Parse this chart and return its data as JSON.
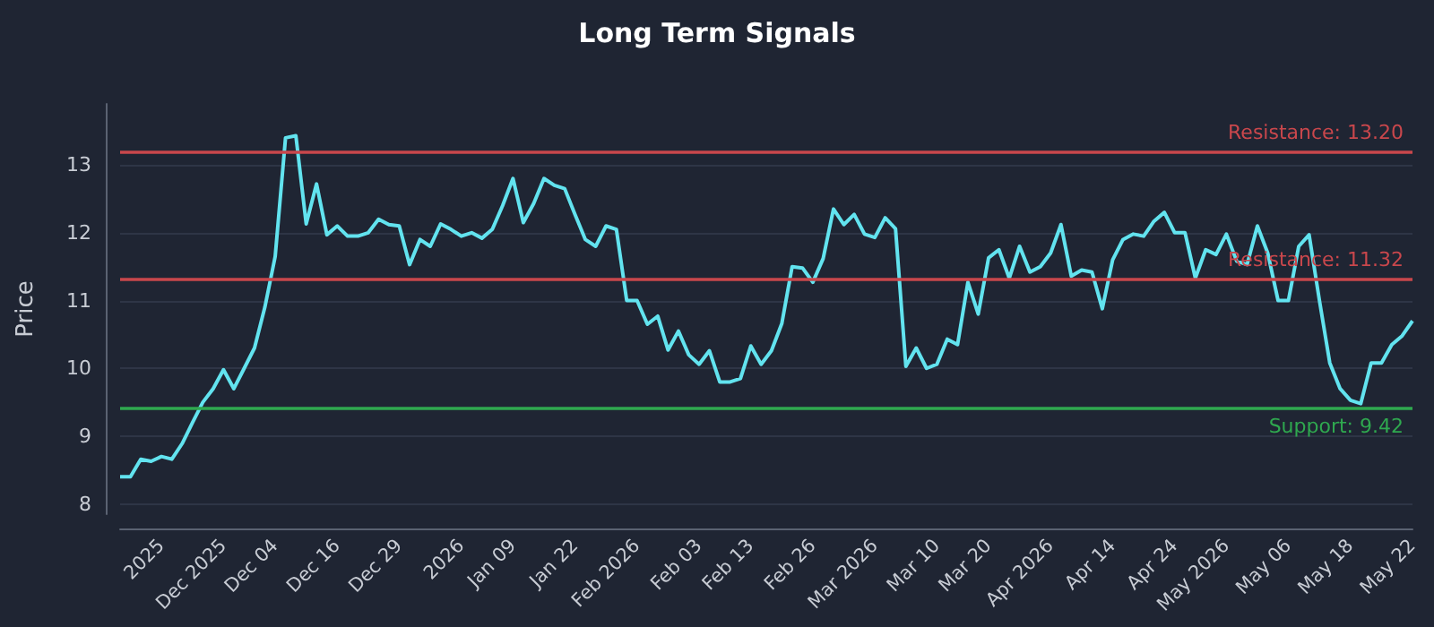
{
  "chart_data": {
    "type": "line",
    "title": "Long Term Signals",
    "ylabel": "Price",
    "categories": [
      null,
      null,
      null,
      null,
      "2025",
      null,
      null,
      null,
      null,
      null,
      "Dec 2025",
      null,
      null,
      null,
      null,
      "Dec 04",
      null,
      null,
      null,
      null,
      null,
      "Dec 16",
      null,
      null,
      null,
      null,
      null,
      "Dec 29",
      null,
      null,
      null,
      null,
      null,
      "2026",
      null,
      null,
      null,
      null,
      "Jan 09",
      null,
      null,
      null,
      null,
      null,
      "Jan 22",
      null,
      null,
      null,
      null,
      null,
      "Feb 2026",
      null,
      null,
      null,
      null,
      null,
      "Feb 03",
      null,
      null,
      null,
      null,
      "Feb 13",
      null,
      null,
      null,
      null,
      null,
      "Feb 26",
      null,
      null,
      null,
      null,
      null,
      "Mar 2026",
      null,
      null,
      null,
      null,
      null,
      "Mar 10",
      null,
      null,
      null,
      null,
      "Mar 20",
      null,
      null,
      null,
      null,
      null,
      "Apr 2026",
      null,
      null,
      null,
      null,
      null,
      "Apr 14",
      null,
      null,
      null,
      null,
      null,
      "Apr 24",
      null,
      null,
      null,
      null,
      "May 2026",
      null,
      null,
      null,
      null,
      null,
      "May 06",
      null,
      null,
      null,
      null,
      null,
      "May 18",
      null,
      null,
      null,
      null,
      null,
      "May 22"
    ],
    "series": [
      {
        "color": "#62e3ef",
        "values": [
          8.4,
          8.4,
          8.66,
          8.63,
          8.7,
          8.66,
          8.89,
          9.2,
          9.5,
          9.7,
          9.98,
          9.7,
          10.0,
          10.3,
          10.9,
          11.65,
          13.4,
          13.43,
          12.13,
          12.72,
          11.97,
          12.1,
          11.95,
          11.95,
          12.0,
          12.2,
          12.12,
          12.1,
          11.53,
          11.9,
          11.8,
          12.13,
          12.05,
          11.95,
          12.0,
          11.92,
          12.05,
          12.4,
          12.8,
          12.15,
          12.43,
          12.8,
          12.7,
          12.65,
          12.27,
          11.9,
          11.8,
          12.1,
          12.05,
          11.0,
          11.0,
          10.65,
          10.77,
          10.27,
          10.55,
          10.2,
          10.06,
          10.26,
          9.8,
          9.8,
          9.85,
          10.33,
          10.06,
          10.26,
          10.66,
          11.5,
          11.48,
          11.27,
          11.62,
          12.35,
          12.12,
          12.27,
          11.98,
          11.93,
          12.22,
          12.06,
          10.03,
          10.3,
          10.0,
          10.06,
          10.43,
          10.35,
          11.27,
          10.8,
          11.63,
          11.75,
          11.33,
          11.8,
          11.42,
          11.5,
          11.7,
          12.12,
          11.36,
          11.45,
          11.42,
          10.88,
          11.6,
          11.9,
          11.98,
          11.95,
          12.17,
          12.3,
          12.0,
          12.0,
          11.33,
          11.75,
          11.68,
          11.98,
          11.58,
          11.53,
          12.1,
          11.7,
          11.0,
          11.0,
          11.8,
          11.97,
          11.0,
          10.08,
          9.7,
          9.53,
          9.48,
          10.08,
          10.08,
          10.35,
          10.48,
          10.7
        ]
      }
    ],
    "ylim": [
      7.85,
      13.9
    ],
    "yticks": [
      8,
      9,
      10,
      11,
      12,
      13
    ],
    "grid": "y",
    "marker": "none",
    "line_style": "solid",
    "ref_lines": [
      {
        "axis": "y",
        "value": 13.2,
        "label": "Resistance: 13.20",
        "color": "#c9474c"
      },
      {
        "axis": "y",
        "value": 11.32,
        "label": "Resistance: 11.32",
        "color": "#c9474c"
      },
      {
        "axis": "y",
        "value": 9.42,
        "label": "Support: 9.42",
        "color": "#2fa84f"
      }
    ]
  }
}
